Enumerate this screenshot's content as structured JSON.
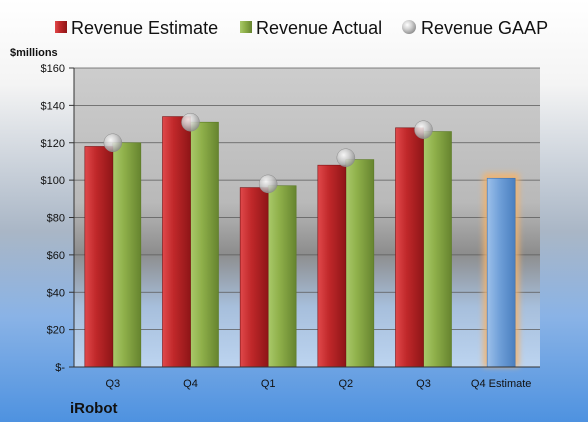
{
  "chart_data": {
    "type": "bar",
    "categories": [
      "Q3",
      "Q4",
      "Q1",
      "Q2",
      "Q3",
      "Q4 Estimate"
    ],
    "series": [
      {
        "name": "Revenue Estimate",
        "kind": "bar",
        "color": "#c0282a",
        "values": [
          118,
          134,
          96,
          108,
          128,
          null
        ]
      },
      {
        "name": "Revenue Actual",
        "kind": "bar",
        "color": "#8fb04a",
        "values": [
          120,
          131,
          97,
          111,
          126,
          null
        ]
      },
      {
        "name": "Revenue GAAP",
        "kind": "marker",
        "color": "#b8b8b8",
        "values": [
          120,
          131,
          98,
          112,
          127,
          null
        ]
      },
      {
        "name": "Q4 Estimate",
        "kind": "bar",
        "color": "#6f9fd8",
        "highlight": "#f5b36b",
        "values": [
          null,
          null,
          null,
          null,
          null,
          101
        ]
      }
    ],
    "ylabel": "$millions",
    "ylim": [
      0,
      160
    ],
    "yticks": [
      0,
      20,
      40,
      60,
      80,
      100,
      120,
      140,
      160
    ],
    "ytick_labels": [
      "$-",
      "$20",
      "$40",
      "$60",
      "$80",
      "$100",
      "$120",
      "$140",
      "$160"
    ],
    "grid": true,
    "legend": "top",
    "footer": "iRobot"
  }
}
